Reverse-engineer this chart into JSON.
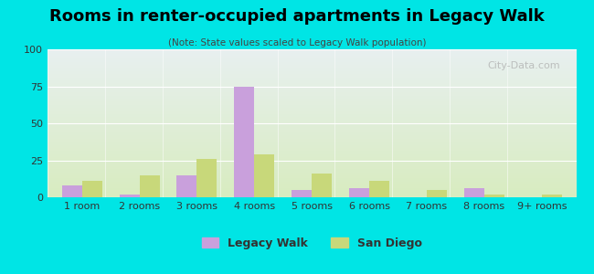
{
  "title": "Rooms in renter-occupied apartments in Legacy Walk",
  "subtitle": "(Note: State values scaled to Legacy Walk population)",
  "categories": [
    "1 room",
    "2 rooms",
    "3 rooms",
    "4 rooms",
    "5 rooms",
    "6 rooms",
    "7 rooms",
    "8 rooms",
    "9+ rooms"
  ],
  "legacy_walk": [
    8,
    2,
    15,
    75,
    5,
    6,
    0,
    6,
    0
  ],
  "san_diego": [
    11,
    15,
    26,
    29,
    16,
    11,
    5,
    2,
    2
  ],
  "legacy_walk_color": "#c9a0dc",
  "san_diego_color": "#c8d87a",
  "background_outer": "#00e5e5",
  "background_plot_top": "#e8f0f0",
  "background_plot_bottom": "#d8ecc0",
  "ylim": [
    0,
    100
  ],
  "yticks": [
    0,
    25,
    50,
    75,
    100
  ],
  "watermark": "City-Data.com",
  "legend_legacy": "Legacy Walk",
  "legend_san_diego": "San Diego"
}
